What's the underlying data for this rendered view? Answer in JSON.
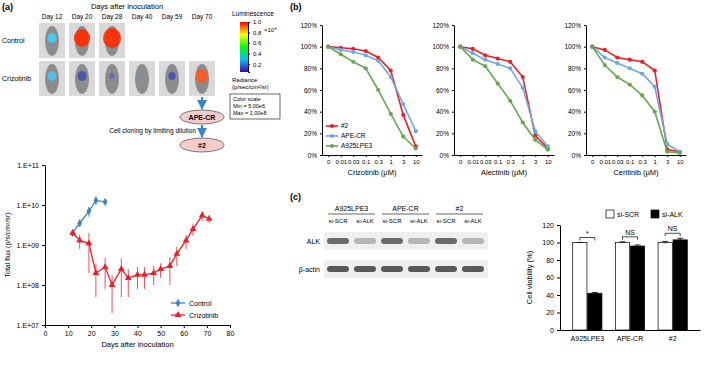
{
  "panel_labels": [
    "(a)",
    "(b)",
    "(c)"
  ],
  "imaging": {
    "header": "Days after inoculation",
    "days": [
      "Day 12",
      "Day 20",
      "Day 28",
      "Day 40",
      "Day 59",
      "Day 70"
    ],
    "rows": [
      "Control",
      "Crizotinib"
    ],
    "colorbar": {
      "title": "Luminescence",
      "range": [
        0.05,
        1
      ],
      "ticks": [
        {
          "value": 1,
          "label": "1.0"
        },
        0.8,
        0.6,
        0.4,
        0.2
      ],
      "multiplier": "×10⁸",
      "unit": [
        "Radiance",
        "(p/sec/cm²/sr)"
      ],
      "scale_box": [
        "Color scale",
        "Min = 5.00e6",
        "Max = 1.00e8"
      ]
    }
  },
  "flow": {
    "parent": "APE-CR",
    "step": "Cell cloning by limiting dilution",
    "clone": "#2"
  },
  "blot": {
    "cell_lines": [
      "A925LPE3",
      "APE-CR",
      "#2"
    ],
    "lanes": [
      "si-SCR",
      "si-ALK"
    ],
    "proteins": [
      "ALK",
      "β-actin"
    ]
  },
  "chart_data": [
    {
      "type": "line",
      "log": "y",
      "x_label": "Days after inoculation",
      "y_label": "Total flux (p/s/cm²/sr)",
      "xlim": [
        0,
        80
      ],
      "xticks": [
        0,
        10,
        20,
        30,
        40,
        50,
        60,
        70,
        80
      ],
      "ylim": [
        10000000,
        100000000000
      ],
      "yticks": [
        {
          "value": 10000000,
          "label": "1.E+07"
        },
        {
          "value": 100000000,
          "label": "1.E+08"
        },
        {
          "value": 1000000000,
          "label": "1.E+09"
        },
        {
          "value": 10000000000,
          "label": "1.E+10"
        },
        {
          "value": 100000000000,
          "label": "1.E+11"
        }
      ],
      "legend": "lower right",
      "series": [
        {
          "name": "Control",
          "color": "#3d85c6",
          "marker": "diamond",
          "x": [
            12,
            15,
            19,
            22,
            26
          ],
          "values": [
            2000000000,
            3500000000,
            7000000000,
            13000000000,
            12000000000
          ],
          "errors": [
            300000000,
            500000000,
            2000000000,
            3000000000,
            1000000000
          ]
        },
        {
          "name": "Crizotinib",
          "color": "#e8202a",
          "marker": "triangle",
          "x": [
            12,
            15,
            19,
            22,
            26,
            29,
            33,
            36,
            40,
            43,
            47,
            50,
            54,
            57,
            61,
            64,
            68,
            71
          ],
          "values": [
            2000000000,
            1300000000,
            1100000000,
            200000000,
            280000000,
            100000000,
            250000000,
            150000000,
            180000000,
            180000000,
            200000000,
            250000000,
            300000000,
            600000000,
            1300000000,
            2500000000,
            5500000000,
            4500000000
          ],
          "errors": [
            300000000,
            500000000,
            900000000,
            150000000,
            200000000,
            80000000,
            200000000,
            100000000,
            100000000,
            100000000,
            100000000,
            100000000,
            200000000,
            300000000,
            500000000,
            800000000,
            1500000000,
            1000000000
          ]
        }
      ]
    },
    {
      "type": "line",
      "x_label": "Crizotinib (μM)",
      "categories": [
        "0",
        "0.01",
        "0.03",
        "0.1",
        "0.3",
        "1",
        "3",
        "10"
      ],
      "ylim": [
        0,
        120
      ],
      "yticks": [
        {
          "value": 0,
          "label": "0%"
        },
        {
          "value": 20,
          "label": "20%"
        },
        {
          "value": 40,
          "label": "40%"
        },
        {
          "value": 60,
          "label": "60%"
        },
        {
          "value": 80,
          "label": "80%"
        },
        {
          "value": 100,
          "label": "100%"
        },
        {
          "value": 120,
          "label": "120%"
        }
      ],
      "legend": "lower left",
      "series": [
        {
          "name": "#2",
          "color": "#e8202a",
          "marker": "circle",
          "values": [
            100,
            99,
            98,
            96,
            90,
            78,
            37,
            8
          ]
        },
        {
          "name": "APE-CR",
          "color": "#6fa8dc",
          "marker": "circle",
          "values": [
            100,
            97,
            95,
            92,
            87,
            72,
            47,
            22
          ]
        },
        {
          "name": "A925LPE3",
          "color": "#6aa84f",
          "marker": "circle",
          "values": [
            100,
            93,
            86,
            80,
            60,
            38,
            17,
            6
          ]
        }
      ]
    },
    {
      "type": "line",
      "x_label": "Alectinib (μM)",
      "categories": [
        "0",
        "0.01",
        "0.03",
        "0.1",
        "0.3",
        "1",
        "3",
        "10"
      ],
      "ylim": [
        0,
        120
      ],
      "yticks": [
        {
          "value": 0,
          "label": "0%"
        },
        {
          "value": 20,
          "label": "20%"
        },
        {
          "value": 40,
          "label": "40%"
        },
        {
          "value": 60,
          "label": "60%"
        },
        {
          "value": 80,
          "label": "80%"
        },
        {
          "value": 100,
          "label": "100%"
        },
        {
          "value": 120,
          "label": "120%"
        }
      ],
      "series": [
        {
          "color": "#e8202a",
          "marker": "circle",
          "values": [
            100,
            98,
            92,
            89,
            86,
            72,
            18,
            6
          ]
        },
        {
          "color": "#6fa8dc",
          "marker": "circle",
          "values": [
            100,
            94,
            88,
            84,
            80,
            62,
            22,
            8
          ]
        },
        {
          "color": "#6aa84f",
          "marker": "circle",
          "values": [
            100,
            88,
            82,
            66,
            50,
            30,
            14,
            5
          ]
        }
      ]
    },
    {
      "type": "line",
      "x_label": "Ceritinib (μM)",
      "categories": [
        "0",
        "0.01",
        "0.03",
        "0.1",
        "0.3",
        "1",
        "3",
        "10"
      ],
      "ylim": [
        0,
        120
      ],
      "yticks": [
        {
          "value": 0,
          "label": "0%"
        },
        {
          "value": 20,
          "label": "20%"
        },
        {
          "value": 40,
          "label": "40%"
        },
        {
          "value": 60,
          "label": "60%"
        },
        {
          "value": 80,
          "label": "80%"
        },
        {
          "value": 100,
          "label": "100%"
        },
        {
          "value": 120,
          "label": "120%"
        }
      ],
      "series": [
        {
          "color": "#e8202a",
          "marker": "circle",
          "values": [
            100,
            97,
            90,
            88,
            86,
            78,
            5,
            3
          ]
        },
        {
          "color": "#6fa8dc",
          "marker": "circle",
          "values": [
            100,
            90,
            85,
            80,
            75,
            63,
            10,
            3
          ]
        },
        {
          "color": "#6aa84f",
          "marker": "circle",
          "values": [
            100,
            83,
            72,
            65,
            55,
            40,
            3,
            2
          ]
        }
      ]
    },
    {
      "type": "bar",
      "y_label": "Cell viability (%)",
      "categories": [
        "A925LPE3",
        "APE-CR",
        "#2"
      ],
      "ylim": [
        0,
        120
      ],
      "yticks": [
        0,
        20,
        40,
        60,
        80,
        100,
        120
      ],
      "legend": "upper right",
      "annotations": [
        "*",
        "NS",
        "NS"
      ],
      "series": [
        {
          "name": "si-SCR",
          "color": "#ffffff",
          "values": [
            100,
            100,
            100
          ],
          "errors": [
            0,
            0.8,
            1.2
          ]
        },
        {
          "name": "si-ALK",
          "color": "#000000",
          "values": [
            42,
            96,
            103
          ],
          "errors": [
            0.8,
            1.2,
            1.8
          ]
        }
      ]
    }
  ]
}
